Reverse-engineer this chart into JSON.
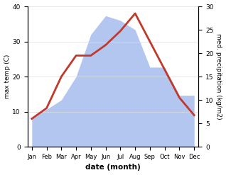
{
  "months": [
    "Jan",
    "Feb",
    "Mar",
    "Apr",
    "May",
    "Jun",
    "Jul",
    "Aug",
    "Sep",
    "Oct",
    "Nov",
    "Dec"
  ],
  "temp": [
    8,
    11,
    20,
    26,
    26,
    29,
    33,
    38,
    30,
    22,
    14,
    9
  ],
  "precip": [
    6,
    8,
    10,
    15,
    24,
    28,
    27,
    25,
    17,
    17,
    11,
    11
  ],
  "temp_color": "#c0392b",
  "precip_color": "#b3c6f0",
  "ylim_temp": [
    0,
    40
  ],
  "ylim_precip": [
    0,
    30
  ],
  "ylabel_left": "max temp (C)",
  "ylabel_right": "med. precipitation (kg/m2)",
  "xlabel": "date (month)",
  "temp_linewidth": 2.0,
  "yticks_left": [
    0,
    10,
    20,
    30,
    40
  ],
  "yticks_right": [
    0,
    5,
    10,
    15,
    20,
    25,
    30
  ],
  "background_color": "#ffffff"
}
